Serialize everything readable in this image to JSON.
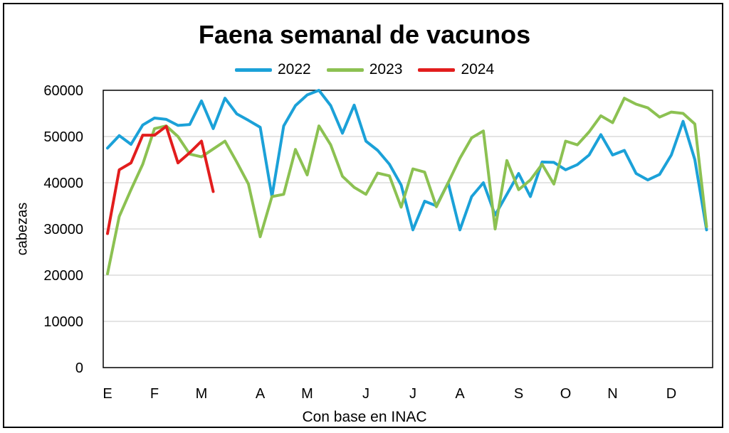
{
  "chart_data": {
    "type": "line",
    "title": "Faena semanal de vacunos",
    "xlabel": "Con base en INAC",
    "ylabel": "cabezas",
    "ylim": [
      0,
      60000
    ],
    "yticks": [
      0,
      10000,
      20000,
      30000,
      40000,
      50000,
      60000
    ],
    "month_labels": [
      "E",
      "F",
      "M",
      "A",
      "M",
      "J",
      "J",
      "A",
      "S",
      "O",
      "N",
      "D"
    ],
    "grid": true,
    "legend_position": "top",
    "series": [
      {
        "name": "2022",
        "color": "#1ba1d8",
        "values": [
          47500,
          50200,
          48300,
          52500,
          54000,
          53700,
          52400,
          52600,
          57700,
          51700,
          58300,
          54900,
          53500,
          52000,
          37000,
          52300,
          56700,
          59000,
          60000,
          56700,
          50700,
          56800,
          49000,
          47000,
          44000,
          39500,
          29800,
          36000,
          35000,
          40000,
          29800,
          37000,
          40000,
          33000,
          37500,
          42000,
          37000,
          44500,
          44400,
          42800,
          43900,
          46000,
          50400,
          46000,
          47000,
          42000,
          40600,
          41800,
          46000,
          53300,
          45000,
          29800
        ]
      },
      {
        "name": "2023",
        "color": "#8cc152",
        "values": [
          20300,
          32700,
          38500,
          44000,
          51700,
          52300,
          50000,
          46200,
          45600,
          47300,
          49000,
          44500,
          39700,
          28300,
          37000,
          37500,
          47200,
          41700,
          52300,
          48200,
          41400,
          39000,
          37500,
          42100,
          41500,
          34700,
          43000,
          42300,
          34800,
          40000,
          45300,
          49700,
          51200,
          30000,
          44800,
          38500,
          40600,
          44000,
          39700,
          49000,
          48200,
          51000,
          54500,
          53000,
          58300,
          57000,
          56200,
          54200,
          55300,
          55000,
          52700,
          30500
        ]
      },
      {
        "name": "2024",
        "color": "#e21d1d",
        "values": [
          29000,
          42800,
          44300,
          50300,
          50300,
          52200,
          44300,
          46500,
          49000,
          38100
        ]
      }
    ]
  }
}
